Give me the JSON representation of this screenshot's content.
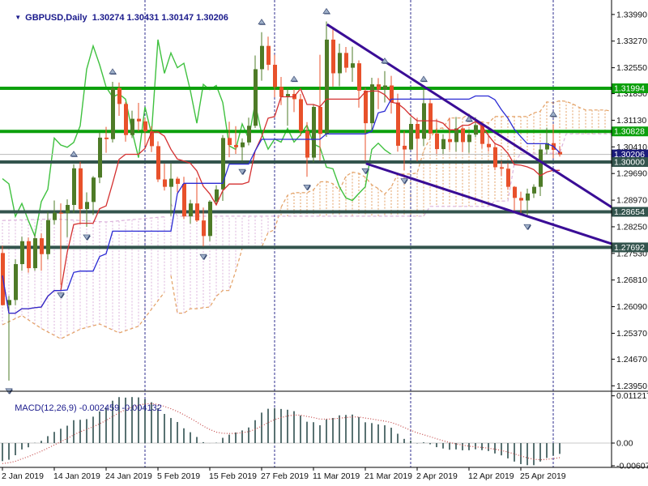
{
  "title": {
    "dropdown_icon": "▼",
    "symbol": "GBPUSD,Daily",
    "quote": "1.30274 1.30431 1.30147 1.30206"
  },
  "colors": {
    "bull": "#4e7b27",
    "bear": "#e8512b",
    "wick_bull": "#4e7b27",
    "wick_bear": "#e8512b",
    "chikou": "#3fc13f",
    "tenkan": "#d43030",
    "kijun": "#2b2bd4",
    "senkou_a": "#e3a064",
    "senkou_b": "#dcb4dc",
    "hline_green": "#0ca00c",
    "hline_dark": "#33544d",
    "badge_navy": "#1b1b7b",
    "title_navy": "#1a1a8c",
    "trendline": "#3a0d96",
    "separator": "#2f2f8f",
    "bid_line": "#b9b9b9",
    "macd_bar": "#2F4F4F",
    "macd_signal": "#c44545",
    "fractal_fill": "#9fb0c8",
    "fractal_edge": "#3c4c74",
    "axis_text": "#111111",
    "border": "#000000"
  },
  "price_axis": {
    "labels": [
      "1.33990",
      "1.33270",
      "1.32550",
      "1.31850",
      "1.31130",
      "1.30410",
      "1.29690",
      "1.28970",
      "1.28250",
      "1.27530",
      "1.26810",
      "1.26090",
      "1.25370",
      "1.24670",
      "1.23950"
    ],
    "badges": [
      {
        "label": "1.31994",
        "price": 1.31994,
        "type": "green"
      },
      {
        "label": "1.30828",
        "price": 1.30828,
        "type": "green"
      },
      {
        "label": "1.30206",
        "price": 1.30206,
        "type": "navy"
      },
      {
        "label": "1.30000",
        "price": 1.3,
        "type": "dark"
      },
      {
        "label": "1.28654",
        "price": 1.28654,
        "type": "dark"
      },
      {
        "label": "1.27692",
        "price": 1.27692,
        "type": "dark"
      }
    ]
  },
  "time_axis": {
    "tick_bars": [
      0,
      8,
      16,
      24,
      32,
      40,
      48,
      56,
      64,
      72,
      80
    ],
    "year_suffix": " 2019"
  },
  "chart_data": {
    "type": "candlestick-ohlc",
    "symbol": "GBPUSD",
    "timeframe": "Daily",
    "bid_price": 1.30206,
    "candles": [
      [
        "2 Jan",
        1.2754,
        1.2774,
        1.2612,
        1.2613
      ],
      [
        "3 Jan",
        1.2613,
        1.2638,
        1.2409,
        1.2627
      ],
      [
        "4 Jan",
        1.2627,
        1.2737,
        1.2613,
        1.2724
      ],
      [
        "7 Jan",
        1.2724,
        1.2798,
        1.2706,
        1.2786
      ],
      [
        "8 Jan",
        1.2786,
        1.2796,
        1.2701,
        1.2713
      ],
      [
        "9 Jan",
        1.2713,
        1.2803,
        1.2706,
        1.2794
      ],
      [
        "10 Jan",
        1.2794,
        1.2807,
        1.2706,
        1.2751
      ],
      [
        "11 Jan",
        1.2751,
        1.2865,
        1.2737,
        1.2843
      ],
      [
        "14 Jan",
        1.2843,
        1.2896,
        1.2831,
        1.2863
      ],
      [
        "15 Jan",
        1.2863,
        1.2888,
        1.2668,
        1.2862
      ],
      [
        "16 Jan",
        1.2862,
        1.2899,
        1.2797,
        1.2884
      ],
      [
        "17 Jan",
        1.2884,
        1.2994,
        1.2862,
        1.2983
      ],
      [
        "18 Jan",
        1.2983,
        1.3001,
        1.2832,
        1.2873
      ],
      [
        "21 Jan",
        1.2873,
        1.2918,
        1.2825,
        1.2892
      ],
      [
        "22 Jan",
        1.2892,
        1.2962,
        1.2857,
        1.2958
      ],
      [
        "23 Jan",
        1.2958,
        1.308,
        1.2943,
        1.3066
      ],
      [
        "24 Jan",
        1.3066,
        1.3095,
        1.3025,
        1.3062
      ],
      [
        "25 Jan",
        1.3062,
        1.3217,
        1.3053,
        1.32
      ],
      [
        "28 Jan",
        1.32,
        1.3215,
        1.3125,
        1.3157
      ],
      [
        "29 Jan",
        1.3157,
        1.3162,
        1.3055,
        1.3073
      ],
      [
        "30 Jan",
        1.3073,
        1.3139,
        1.3065,
        1.3117
      ],
      [
        "31 Jan",
        1.3117,
        1.316,
        1.3083,
        1.311
      ],
      [
        "1 Feb",
        1.311,
        1.3119,
        1.3044,
        1.3083
      ],
      [
        "4 Feb",
        1.3083,
        1.3097,
        1.3027,
        1.3043
      ],
      [
        "5 Feb",
        1.3043,
        1.3056,
        1.2946,
        1.2953
      ],
      [
        "6 Feb",
        1.2953,
        1.2996,
        1.2923,
        1.2933
      ],
      [
        "7 Feb",
        1.2933,
        1.2996,
        1.2854,
        1.2955
      ],
      [
        "8 Feb",
        1.2955,
        1.296,
        1.2918,
        1.2941
      ],
      [
        "11 Feb",
        1.2941,
        1.296,
        1.2846,
        1.2853
      ],
      [
        "12 Feb",
        1.2853,
        1.2898,
        1.2833,
        1.2888
      ],
      [
        "13 Feb",
        1.2888,
        1.2958,
        1.2838,
        1.2842
      ],
      [
        "14 Feb",
        1.2842,
        1.2877,
        1.2772,
        1.28
      ],
      [
        "15 Feb",
        1.28,
        1.2897,
        1.2786,
        1.2893
      ],
      [
        "18 Feb",
        1.2893,
        1.2937,
        1.2886,
        1.2926
      ],
      [
        "19 Feb",
        1.2926,
        1.3073,
        1.2895,
        1.3065
      ],
      [
        "20 Feb",
        1.3065,
        1.3109,
        1.3013,
        1.3046
      ],
      [
        "21 Feb",
        1.3046,
        1.3097,
        1.3022,
        1.304
      ],
      [
        "22 Feb",
        1.304,
        1.3064,
        1.3002,
        1.3053
      ],
      [
        "25 Feb",
        1.3053,
        1.312,
        1.3045,
        1.3098
      ],
      [
        "26 Feb",
        1.3098,
        1.3288,
        1.3092,
        1.3251
      ],
      [
        "27 Feb",
        1.3251,
        1.3351,
        1.322,
        1.3314
      ],
      [
        "28 Feb",
        1.3314,
        1.3339,
        1.3248,
        1.3263
      ],
      [
        "1 Mar",
        1.3263,
        1.329,
        1.3175,
        1.3203
      ],
      [
        "4 Mar",
        1.3203,
        1.323,
        1.3154,
        1.3176
      ],
      [
        "5 Mar",
        1.3176,
        1.32,
        1.3098,
        1.3184
      ],
      [
        "6 Mar",
        1.3184,
        1.3197,
        1.3135,
        1.317
      ],
      [
        "7 Mar",
        1.317,
        1.3184,
        1.307,
        1.3084
      ],
      [
        "8 Mar",
        1.3084,
        1.3108,
        1.296,
        1.3012
      ],
      [
        "11 Mar",
        1.3012,
        1.3155,
        1.2999,
        1.3149
      ],
      [
        "12 Mar",
        1.3149,
        1.329,
        1.3004,
        1.3076
      ],
      [
        "13 Mar",
        1.3076,
        1.338,
        1.3068,
        1.3331
      ],
      [
        "14 Mar",
        1.3331,
        1.336,
        1.3204,
        1.324
      ],
      [
        "15 Mar",
        1.324,
        1.332,
        1.3205,
        1.3295
      ],
      [
        "18 Mar",
        1.3295,
        1.3311,
        1.3242,
        1.3255
      ],
      [
        "19 Mar",
        1.3255,
        1.3312,
        1.3217,
        1.3267
      ],
      [
        "20 Mar",
        1.3267,
        1.3275,
        1.3147,
        1.3193
      ],
      [
        "21 Mar",
        1.3193,
        1.3201,
        1.3004,
        1.3105
      ],
      [
        "22 Mar",
        1.3105,
        1.3228,
        1.308,
        1.321
      ],
      [
        "25 Mar",
        1.321,
        1.3227,
        1.3143,
        1.3196
      ],
      [
        "26 Mar",
        1.3196,
        1.3246,
        1.3161,
        1.3207
      ],
      [
        "27 Mar",
        1.3207,
        1.3233,
        1.3131,
        1.3161
      ],
      [
        "28 Mar",
        1.3161,
        1.3185,
        1.3028,
        1.3044
      ],
      [
        "29 Mar",
        1.3044,
        1.3084,
        1.2977,
        1.3034
      ],
      [
        "1 Apr",
        1.3034,
        1.3122,
        1.3032,
        1.3103
      ],
      [
        "2 Apr",
        1.3103,
        1.312,
        1.3002,
        1.3063
      ],
      [
        "3 Apr",
        1.3063,
        1.3197,
        1.3043,
        1.3159
      ],
      [
        "4 Apr",
        1.3159,
        1.3172,
        1.3065,
        1.3077
      ],
      [
        "5 Apr",
        1.3077,
        1.3117,
        1.3022,
        1.3035
      ],
      [
        "8 Apr",
        1.3035,
        1.3075,
        1.3022,
        1.3062
      ],
      [
        "9 Apr",
        1.3062,
        1.312,
        1.3032,
        1.3054
      ],
      [
        "10 Apr",
        1.3054,
        1.3122,
        1.3028,
        1.3091
      ],
      [
        "11 Apr",
        1.3091,
        1.3097,
        1.3027,
        1.3054
      ],
      [
        "12 Apr",
        1.3054,
        1.3089,
        1.3025,
        1.3074
      ],
      [
        "15 Apr",
        1.3074,
        1.3121,
        1.3067,
        1.31
      ],
      [
        "16 Apr",
        1.31,
        1.3106,
        1.3037,
        1.3049
      ],
      [
        "17 Apr",
        1.3049,
        1.3073,
        1.3028,
        1.304
      ],
      [
        "18 Apr",
        1.304,
        1.3052,
        1.2978,
        1.2986
      ],
      [
        "22 Apr",
        1.2986,
        1.3002,
        1.2963,
        1.2982
      ],
      [
        "23 Apr",
        1.2982,
        1.2997,
        1.2925,
        1.2933
      ],
      [
        "24 Apr",
        1.2933,
        1.2935,
        1.2865,
        1.2903
      ],
      [
        "25 Apr",
        1.2903,
        1.292,
        1.2862,
        1.2896
      ],
      [
        "26 Apr",
        1.2896,
        1.2928,
        1.2853,
        1.2915
      ],
      [
        "29 Apr",
        1.2915,
        1.294,
        1.2903,
        1.2933
      ],
      [
        "30 Apr",
        1.2933,
        1.3047,
        1.2908,
        1.3034
      ],
      [
        "1 May",
        1.3034,
        1.3093,
        1.3021,
        1.3051
      ],
      [
        "2 May",
        1.3051,
        1.3102,
        1.301,
        1.3033
      ],
      [
        "3 May",
        1.30274,
        1.30431,
        1.30147,
        1.30206
      ]
    ]
  },
  "indicators": {
    "ichimoku": {
      "tenkan": 9,
      "kijun": 26,
      "senkou": 52,
      "displacement": 26,
      "history_seed": {
        "high": 1.3298,
        "low": 1.2477
      },
      "pre_cloud": {
        "senkou_a": [
          [
            0,
            1.256
          ],
          [
            3,
            1.2585
          ],
          [
            6,
            1.255
          ],
          [
            9,
            1.2522
          ],
          [
            12,
            1.2548
          ],
          [
            15,
            1.2562
          ],
          [
            18,
            1.2538
          ],
          [
            21,
            1.2556
          ],
          [
            25,
            1.2648
          ]
        ],
        "senkou_b": [
          [
            0,
            1.2842
          ],
          [
            8,
            1.2846
          ],
          [
            16,
            1.2838
          ],
          [
            25,
            1.2852
          ]
        ]
      }
    },
    "macd": {
      "label": "MACD(12,26,9)",
      "value_main": "-0.002459",
      "value_signal": "-0.004132",
      "fast": 12,
      "slow": 26,
      "signal": 9,
      "scale_labels": [
        "0.011217",
        "0.00",
        "-0.006077"
      ]
    }
  },
  "objects": {
    "hlines": [
      {
        "price": 1.31994,
        "type": "green"
      },
      {
        "price": 1.30828,
        "type": "green"
      },
      {
        "price": 1.3,
        "type": "dark"
      },
      {
        "price": 1.28654,
        "type": "dark"
      },
      {
        "price": 1.27692,
        "type": "dark"
      }
    ],
    "trendlines": [
      {
        "b1": 50.1,
        "p1": 1.3372,
        "b2": 94.3,
        "p2": 1.2878
      },
      {
        "b1": 56.1,
        "p1": 1.2996,
        "b2": 94.4,
        "p2": 1.2779
      }
    ],
    "fractals_up": [
      11,
      17,
      40,
      45,
      50,
      59,
      65,
      72,
      85
    ],
    "fractals_down": [
      1,
      9,
      13,
      31,
      37,
      47,
      56,
      62,
      81
    ],
    "month_separator_bars": [
      22,
      42,
      63,
      85
    ]
  }
}
